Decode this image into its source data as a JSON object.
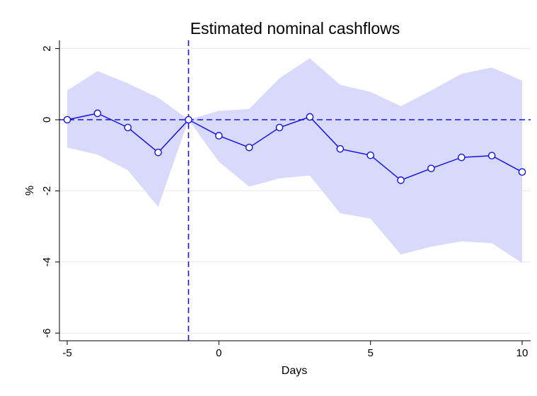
{
  "chart_data": {
    "type": "line",
    "title": "Estimated nominal cashflows",
    "xlabel": "Days",
    "ylabel": "%",
    "xlim": [
      -5,
      10
    ],
    "ylim": [
      -6.2,
      2.3
    ],
    "x_ticks": [
      -5,
      0,
      5,
      10
    ],
    "y_ticks": [
      -6,
      -4,
      -2,
      0,
      2
    ],
    "grid": "horizontal",
    "reference_lines": {
      "y": 0,
      "x": -1
    },
    "x": [
      -5,
      -4,
      -3,
      -2,
      -1,
      0,
      1,
      2,
      3,
      4,
      5,
      6,
      7,
      8,
      9,
      10
    ],
    "series": [
      {
        "values": [
          0.0,
          0.18,
          -0.22,
          -0.92,
          0.0,
          -0.45,
          -0.78,
          -0.22,
          0.08,
          -0.82,
          -1.0,
          -1.7,
          -1.37,
          -1.06,
          -1.01,
          -1.47
        ],
        "ci_upper": [
          0.82,
          1.37,
          1.02,
          0.62,
          0.0,
          0.25,
          0.3,
          1.17,
          1.73,
          0.98,
          0.78,
          0.38,
          0.82,
          1.29,
          1.47,
          1.1
        ],
        "ci_lower": [
          -0.78,
          -0.98,
          -1.42,
          -2.45,
          0.0,
          -1.18,
          -1.88,
          -1.65,
          -1.57,
          -2.63,
          -2.78,
          -3.79,
          -3.57,
          -3.42,
          -3.47,
          -4.03
        ]
      }
    ],
    "colors": {
      "line": "#1414e0",
      "band": "#d9d9fb",
      "grid": "#e6ecf0",
      "axis": "#000000"
    }
  }
}
